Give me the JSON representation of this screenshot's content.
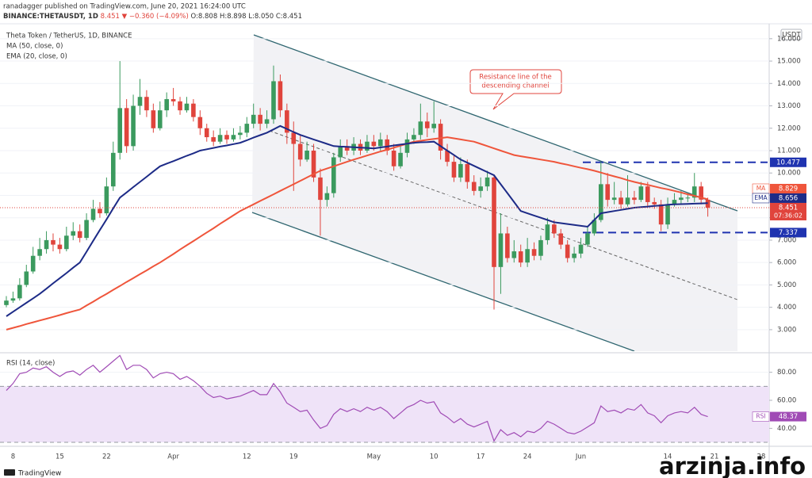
{
  "header": {
    "author_line": "ranadagger published on TradingView.com, June 20, 2021 16:24:00 UTC",
    "symbol": "BINANCE:THETAUSDT, 1D",
    "quote": "8.451 ▼ −0.360 (−4.09%)",
    "ohlc": "O:8.808 H:8.898 L:8.050 C:8.451"
  },
  "chart_data": [
    {
      "type": "candlestick",
      "title": "Theta Token / TetherUS, 1D, BINANCE",
      "currency": "USDT",
      "categories": [
        null,
        "8",
        null,
        null,
        null,
        null,
        null,
        null,
        "15",
        null,
        null,
        null,
        null,
        null,
        null,
        "22",
        null,
        null,
        null,
        null,
        null,
        null,
        null,
        null,
        null,
        "Apr",
        null,
        null,
        null,
        null,
        null,
        null,
        null,
        null,
        null,
        null,
        "12",
        null,
        null,
        null,
        null,
        null,
        null,
        "19",
        null,
        null,
        null,
        null,
        null,
        null,
        null,
        null,
        null,
        null,
        null,
        "May",
        null,
        null,
        null,
        null,
        null,
        null,
        null,
        null,
        "10",
        null,
        null,
        null,
        null,
        null,
        null,
        "17",
        null,
        null,
        null,
        null,
        null,
        null,
        "24",
        null,
        null,
        null,
        null,
        null,
        null,
        null,
        "Jun",
        null,
        null,
        null,
        null,
        null,
        null,
        null,
        null,
        null,
        null,
        null,
        null,
        "14",
        null,
        null,
        null,
        null,
        null,
        null,
        "21",
        null,
        null,
        null,
        null,
        null,
        null,
        "28"
      ],
      "open": [
        4.1,
        4.3,
        4.4,
        5.0,
        5.6,
        6.3,
        6.6,
        7.0,
        6.8,
        6.6,
        7.2,
        7.4,
        7.1,
        7.9,
        8.4,
        8.2,
        9.4,
        10.9,
        12.9,
        11.2,
        13.0,
        13.4,
        12.8,
        12.0,
        12.8,
        13.3,
        13.2,
        12.8,
        13.1,
        12.5,
        12.0,
        11.6,
        11.4,
        11.7,
        11.5,
        11.7,
        11.8,
        12.2,
        12.6,
        12.2,
        12.4,
        14.1,
        12.8,
        11.8,
        11.3,
        10.6,
        11.0,
        9.8,
        8.8,
        9.1,
        10.7,
        11.2,
        11.0,
        11.3,
        11.0,
        11.4,
        11.2,
        11.5,
        11.0,
        10.3,
        10.9,
        11.5,
        11.7,
        12.3,
        12.0,
        12.2,
        11.0,
        10.5,
        9.8,
        10.4,
        9.6,
        9.2,
        9.4,
        9.8,
        5.8,
        7.3,
        6.2,
        6.5,
        6.0,
        6.6,
        6.3,
        7.0,
        7.7,
        7.3,
        6.8,
        6.2,
        6.4,
        6.8,
        7.3,
        7.9,
        9.5,
        8.8,
        8.9,
        8.6,
        8.9,
        8.8,
        9.4,
        8.7,
        8.6,
        7.7,
        8.6,
        8.8,
        8.9,
        8.9,
        9.4,
        8.808,
        null,
        null,
        null,
        null,
        null,
        null,
        null,
        null
      ],
      "high": [
        4.5,
        4.7,
        5.3,
        5.9,
        6.7,
        7.1,
        7.4,
        7.3,
        7.1,
        7.6,
        7.8,
        7.7,
        8.2,
        8.8,
        8.7,
        9.8,
        11.4,
        15.0,
        13.3,
        13.5,
        14.2,
        13.7,
        13.1,
        13.2,
        13.6,
        13.8,
        13.4,
        13.4,
        13.3,
        12.8,
        12.2,
        11.9,
        12.0,
        11.9,
        12.0,
        12.1,
        12.5,
        13.1,
        12.9,
        12.8,
        14.8,
        14.4,
        13.1,
        12.3,
        11.7,
        11.4,
        11.3,
        10.2,
        9.4,
        10.9,
        11.5,
        11.5,
        11.6,
        11.5,
        11.7,
        11.7,
        11.8,
        11.7,
        11.3,
        11.2,
        11.8,
        12.0,
        13.1,
        12.7,
        13.2,
        12.4,
        11.3,
        10.8,
        10.7,
        10.6,
        9.9,
        9.8,
        10.1,
        9.9,
        8.2,
        7.6,
        7.0,
        6.8,
        7.1,
        6.9,
        7.2,
        8.0,
        7.9,
        7.5,
        7.0,
        6.7,
        7.1,
        7.6,
        8.2,
        10.5,
        10.0,
        9.6,
        9.2,
        9.9,
        9.2,
        9.6,
        9.6,
        8.9,
        8.8,
        8.9,
        9.1,
        9.2,
        9.1,
        10.0,
        9.6,
        8.898,
        null,
        null,
        null,
        null,
        null,
        null,
        null,
        null
      ],
      "low": [
        4.0,
        4.2,
        4.3,
        4.9,
        5.5,
        6.1,
        6.4,
        6.5,
        6.4,
        6.5,
        7.0,
        6.9,
        7.0,
        7.8,
        8.0,
        8.1,
        9.2,
        10.6,
        10.9,
        11.0,
        12.6,
        12.5,
        11.8,
        11.9,
        12.5,
        13.0,
        12.6,
        12.7,
        12.3,
        11.7,
        11.4,
        11.2,
        11.3,
        11.3,
        11.4,
        11.5,
        11.6,
        12.0,
        11.9,
        12.0,
        12.2,
        12.5,
        11.3,
        9.2,
        10.3,
        10.5,
        9.6,
        7.2,
        8.5,
        8.9,
        10.5,
        10.8,
        10.8,
        10.8,
        10.9,
        11.0,
        11.0,
        10.8,
        10.1,
        10.2,
        10.7,
        11.3,
        11.5,
        11.6,
        11.8,
        10.6,
        10.3,
        9.6,
        9.6,
        9.3,
        9.0,
        8.9,
        9.2,
        3.9,
        4.6,
        6.0,
        6.0,
        5.8,
        5.8,
        6.1,
        6.1,
        6.8,
        7.1,
        6.6,
        6.0,
        6.0,
        6.2,
        6.7,
        7.2,
        7.8,
        8.5,
        8.6,
        8.4,
        8.5,
        8.6,
        8.7,
        8.5,
        8.4,
        7.4,
        7.5,
        8.5,
        8.6,
        8.7,
        8.7,
        8.6,
        8.05,
        null,
        null,
        null,
        null,
        null,
        null,
        null,
        null
      ],
      "close": [
        4.3,
        4.4,
        5.0,
        5.6,
        6.3,
        6.6,
        7.0,
        6.8,
        6.6,
        7.2,
        7.4,
        7.1,
        7.9,
        8.4,
        8.2,
        9.4,
        10.9,
        12.9,
        11.2,
        13.0,
        13.4,
        12.8,
        12.0,
        12.8,
        13.3,
        13.2,
        12.8,
        13.1,
        12.5,
        12.0,
        11.6,
        11.4,
        11.7,
        11.5,
        11.7,
        11.8,
        12.2,
        12.6,
        12.2,
        12.4,
        14.1,
        12.8,
        11.8,
        11.3,
        10.6,
        11.0,
        9.8,
        8.8,
        9.1,
        10.7,
        11.2,
        11.0,
        11.3,
        11.0,
        11.4,
        11.2,
        11.5,
        11.0,
        10.3,
        10.9,
        11.5,
        11.7,
        12.3,
        12.0,
        12.2,
        11.0,
        10.5,
        9.8,
        10.4,
        9.6,
        9.2,
        9.4,
        9.8,
        5.8,
        7.3,
        6.2,
        6.5,
        6.0,
        6.6,
        6.3,
        7.0,
        7.7,
        7.3,
        6.8,
        6.2,
        6.4,
        6.8,
        7.3,
        7.9,
        9.5,
        8.8,
        8.9,
        8.6,
        8.9,
        8.8,
        9.4,
        8.7,
        8.6,
        7.7,
        8.6,
        8.8,
        8.9,
        8.9,
        9.4,
        8.811,
        8.451,
        null,
        null,
        null,
        null,
        null,
        null,
        null,
        null
      ],
      "up_color": "#3b9a5e",
      "down_color": "#e0443c",
      "series": [
        {
          "name": "MA (50, close, 0)",
          "tag": "MA",
          "color": "#ef553b",
          "values": [
            3.0,
            3.08,
            3.16,
            3.25,
            3.33,
            3.41,
            3.49,
            3.57,
            3.65,
            3.74,
            3.82,
            3.9,
            4.08,
            4.25,
            4.43,
            4.6,
            4.78,
            4.95,
            5.13,
            5.3,
            5.48,
            5.65,
            5.83,
            6.0,
            6.19,
            6.38,
            6.58,
            6.77,
            6.96,
            7.15,
            7.34,
            7.53,
            7.73,
            7.92,
            8.11,
            8.3,
            8.45,
            8.6,
            8.75,
            8.9,
            9.05,
            9.2,
            9.35,
            9.5,
            9.65,
            9.8,
            9.95,
            10.1,
            10.2,
            10.3,
            10.4,
            10.5,
            10.6,
            10.69,
            10.78,
            10.87,
            10.96,
            11.04,
            11.13,
            11.22,
            11.31,
            11.4,
            11.44,
            11.48,
            11.52,
            11.56,
            11.6,
            11.55,
            11.5,
            11.45,
            11.4,
            11.3,
            11.2,
            11.1,
            11.0,
            10.9,
            10.8,
            10.75,
            10.7,
            10.65,
            10.6,
            10.55,
            10.5,
            10.43,
            10.37,
            10.3,
            10.23,
            10.17,
            10.1,
            10.02,
            9.93,
            9.85,
            9.77,
            9.68,
            9.6,
            9.53,
            9.47,
            9.4,
            9.33,
            9.27,
            9.2,
            9.13,
            9.05,
            8.98,
            8.9,
            8.829,
            null,
            null,
            null,
            null,
            null,
            null,
            null,
            null
          ]
        },
        {
          "name": "EMA (20, close, 0)",
          "tag": "EMA",
          "color": "#1d2b87",
          "values": [
            3.6,
            3.8,
            4.0,
            4.2,
            4.4,
            4.6,
            4.83,
            5.07,
            5.3,
            5.53,
            5.77,
            6.0,
            6.48,
            6.97,
            7.45,
            7.93,
            8.42,
            8.9,
            9.13,
            9.37,
            9.6,
            9.83,
            10.07,
            10.3,
            10.42,
            10.53,
            10.65,
            10.77,
            10.88,
            11.0,
            11.06,
            11.12,
            11.18,
            11.23,
            11.29,
            11.35,
            11.46,
            11.58,
            11.69,
            11.8,
            11.95,
            12.1,
            11.97,
            11.83,
            11.7,
            11.6,
            11.5,
            11.4,
            11.3,
            11.2,
            11.18,
            11.17,
            11.15,
            11.13,
            11.12,
            11.1,
            11.14,
            11.18,
            11.23,
            11.27,
            11.31,
            11.35,
            11.37,
            11.38,
            11.4,
            11.2,
            11.0,
            10.8,
            10.6,
            10.46,
            10.32,
            10.18,
            10.04,
            9.9,
            9.5,
            9.1,
            8.7,
            8.3,
            8.2,
            8.1,
            8.0,
            7.9,
            7.8,
            7.76,
            7.72,
            7.68,
            7.64,
            7.6,
            7.9,
            8.2,
            8.25,
            8.3,
            8.35,
            8.4,
            8.45,
            8.48,
            8.5,
            8.53,
            8.55,
            8.58,
            8.6,
            8.61,
            8.62,
            8.63,
            8.64,
            8.656,
            null,
            null,
            null,
            null,
            null,
            null,
            null,
            null
          ]
        }
      ],
      "countdown": "07:36:02",
      "levels": [
        10.477,
        7.337
      ],
      "level_color": "#1f33b0",
      "annotation": [
        "Resistance line of the",
        "descending channel"
      ],
      "ylim": [
        2.04,
        16.56
      ],
      "yticks": [
        {
          "value": 3,
          "label": "3.000"
        },
        {
          "value": 4,
          "label": "4.000"
        },
        {
          "value": 5,
          "label": "5.000"
        },
        {
          "value": 6,
          "label": "6.000"
        },
        {
          "value": 7,
          "label": "7.000"
        },
        {
          "value": 8,
          "label": "8.000"
        },
        {
          "value": 9,
          "label": "9.000"
        },
        {
          "value": 10,
          "label": "10.000"
        },
        {
          "value": 11,
          "label": "11.000"
        },
        {
          "value": 12,
          "label": "12.000"
        },
        {
          "value": 13,
          "label": "13.000"
        },
        {
          "value": 14,
          "label": "14.000"
        },
        {
          "value": 15,
          "label": "15.000"
        },
        {
          "value": 16,
          "label": "16.000"
        }
      ],
      "grid": true
    },
    {
      "type": "line",
      "series": [
        {
          "name": "RSI (14, close)",
          "tag": "RSI",
          "color": "#a04bb5",
          "values": [
            67,
            72,
            79,
            80,
            83,
            82,
            84,
            80,
            77,
            80,
            81,
            78,
            82,
            85,
            80,
            84,
            88,
            92,
            82,
            85,
            85,
            82,
            76,
            79,
            80,
            79,
            75,
            77,
            74,
            70,
            65,
            62,
            63,
            61,
            62,
            63,
            65,
            67,
            64,
            64,
            72,
            66,
            58,
            55,
            52,
            53,
            46,
            40,
            42,
            50,
            54,
            52,
            54,
            52,
            55,
            53,
            55,
            52,
            47,
            51,
            55,
            57,
            60,
            58,
            59,
            51,
            48,
            44,
            47,
            43,
            41,
            43,
            45,
            31,
            39,
            35,
            37,
            34,
            38,
            37,
            40,
            45,
            43,
            40,
            37,
            36,
            38,
            41,
            44,
            56,
            52,
            53,
            51,
            54,
            53,
            57,
            51,
            49,
            44,
            49,
            51,
            52,
            51,
            55,
            50,
            48.37,
            null,
            null,
            null,
            null,
            null,
            null,
            null,
            null
          ]
        }
      ],
      "band": [
        30,
        70
      ],
      "band_color": "#efe3f8",
      "ylim": [
        28.9,
        92.8
      ],
      "yticks": [
        {
          "value": 40,
          "label": "40.00"
        },
        {
          "value": 60,
          "label": "60.00"
        },
        {
          "value": 80,
          "label": "80.00"
        }
      ],
      "grid": true
    }
  ],
  "logo": "TradingView",
  "watermark": "arzinja.info"
}
